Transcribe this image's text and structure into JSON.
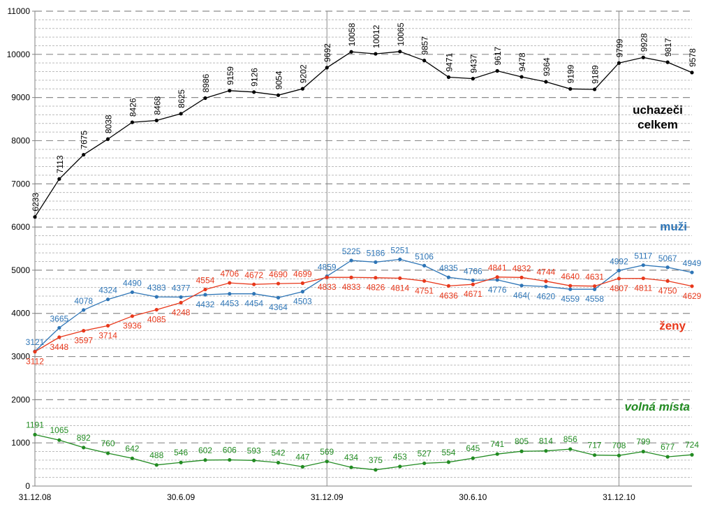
{
  "chart_data": {
    "type": "line",
    "title": "",
    "xlabel": "",
    "ylabel": "",
    "ylim": [
      0,
      11000
    ],
    "y_ticks": [
      0,
      1000,
      2000,
      3000,
      4000,
      5000,
      6000,
      7000,
      8000,
      9000,
      10000,
      11000
    ],
    "grid": "horizontal dashed every 200, solid every 1000, vertical lines at 31.12.09 and 31.12.10",
    "x_tick_labels": [
      {
        "index": 0,
        "label": "31.12.08"
      },
      {
        "index": 6,
        "label": "30.6.09"
      },
      {
        "index": 12,
        "label": "31.12.09"
      },
      {
        "index": 18,
        "label": "30.6.10"
      },
      {
        "index": 24,
        "label": "31.12.10"
      }
    ],
    "x_count": 28,
    "series": [
      {
        "name": "uchazeči celkem",
        "color": "#000000",
        "values": [
          6233,
          7113,
          7675,
          8038,
          8426,
          8468,
          8625,
          8986,
          9159,
          9126,
          9054,
          9202,
          9692,
          10058,
          10012,
          10065,
          9857,
          9471,
          9437,
          9617,
          9478,
          9364,
          9199,
          9189,
          9799,
          9928,
          9817,
          9578
        ]
      },
      {
        "name": "muži",
        "color": "#2E75B6",
        "values": [
          3121,
          3665,
          4078,
          4324,
          4490,
          4383,
          4377,
          4432,
          4453,
          4454,
          4364,
          4503,
          4859,
          5225,
          5186,
          5251,
          5106,
          4835,
          4766,
          4776,
          4646,
          4620,
          4559,
          4558,
          4992,
          5117,
          5067,
          4949
        ],
        "labels": [
          "3121",
          "3665",
          "4078",
          "4324",
          "4490",
          "4383",
          "4377",
          "4432",
          "4453",
          "4454",
          "4364",
          "4503",
          "4859",
          "5225",
          "5186",
          "5251",
          "5106",
          "4835",
          "4766",
          "4776",
          "464(",
          "4620",
          "4559",
          "4558",
          "4992",
          "5117",
          "5067",
          "4949"
        ]
      },
      {
        "name": "ženy",
        "color": "#E8381B",
        "values": [
          3112,
          3448,
          3597,
          3714,
          3936,
          4085,
          4248,
          4554,
          4706,
          4672,
          4690,
          4699,
          4833,
          4833,
          4826,
          4814,
          4751,
          4636,
          4671,
          4841,
          4832,
          4744,
          4640,
          4631,
          4807,
          4811,
          4750,
          4629
        ]
      },
      {
        "name": "volná místa",
        "color": "#228B22",
        "values": [
          1191,
          1065,
          892,
          760,
          642,
          488,
          546,
          602,
          606,
          593,
          542,
          447,
          569,
          434,
          375,
          453,
          527,
          554,
          645,
          741,
          805,
          814,
          856,
          717,
          708,
          799,
          677,
          724
        ]
      }
    ],
    "series_labels": {
      "total_line1": "uchazeči",
      "total_line2": "celkem",
      "men": "muži",
      "women": "ženy",
      "vacancies": "volná místa"
    }
  }
}
